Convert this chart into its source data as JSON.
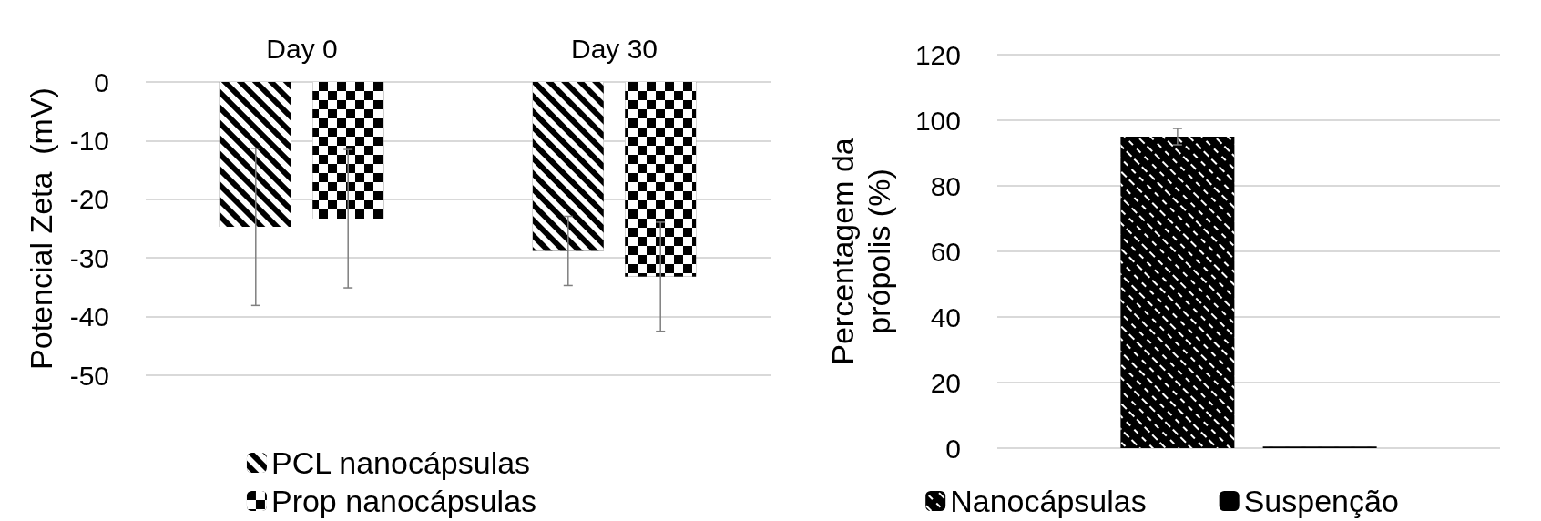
{
  "chart_data": [
    {
      "type": "bar",
      "ylabel": "Potencial Zeta  (mV)",
      "categories": [
        "Day 0",
        "Day 30"
      ],
      "ylim": [
        -50,
        0
      ],
      "yticks": [
        -50,
        -40,
        -30,
        -20,
        -10,
        0
      ],
      "grid": "y",
      "legend": "bottom",
      "series": [
        {
          "name": "PCL nanocápsulas",
          "color": "#000000",
          "values": [
            -24.7,
            -28.8
          ],
          "errors": [
            13.4,
            5.9
          ]
        },
        {
          "name": "Prop nanocápsulas",
          "color": "#000000",
          "values": [
            -23.3,
            -33.2
          ],
          "errors": [
            11.8,
            9.3
          ]
        }
      ]
    },
    {
      "type": "bar",
      "ylabel": "Percentagem da própolis (%)",
      "categories": [
        null
      ],
      "ylim": [
        0,
        120
      ],
      "yticks": [
        0,
        20,
        40,
        60,
        80,
        100,
        120
      ],
      "grid": "y",
      "legend": "bottom",
      "tick_labels": "y",
      "series": [
        {
          "name": "Nanocápsulas",
          "color": "#000000",
          "values": [
            95
          ],
          "errors": [
            2.5
          ]
        },
        {
          "name": "Suspenção",
          "color": "#000000",
          "values": [
            0.5
          ]
        }
      ]
    }
  ]
}
